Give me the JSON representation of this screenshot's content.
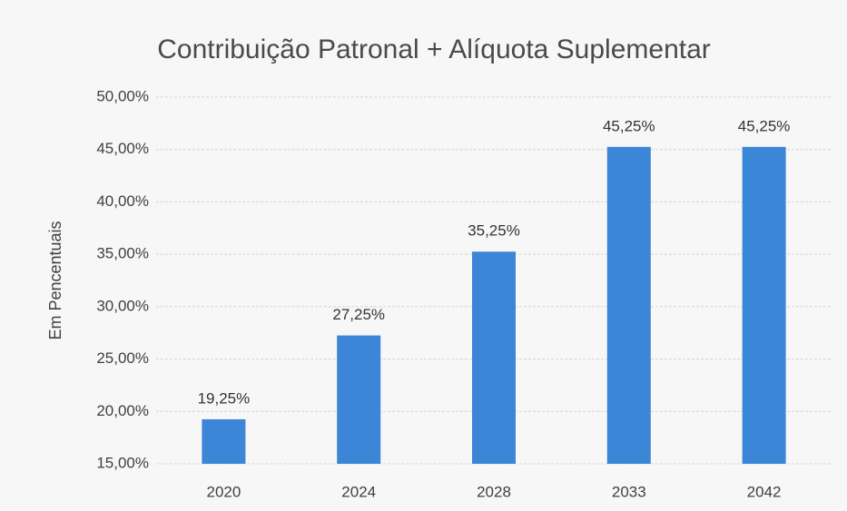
{
  "chart_data": {
    "type": "bar",
    "title": "Contribuição Patronal + Alíquota Suplementar",
    "y_label": "Em Pencentuais",
    "categories": [
      "2020",
      "2024",
      "2028",
      "2033",
      "2042"
    ],
    "values": [
      19.25,
      27.25,
      35.25,
      45.25,
      45.25
    ],
    "value_labels": [
      "19,25%",
      "27,25%",
      "35,25%",
      "45,25%",
      "45,25%"
    ],
    "color": "#3b86d6",
    "ylim": [
      15,
      50
    ],
    "yticks": [
      {
        "value": 15,
        "label": "15,00%"
      },
      {
        "value": 20,
        "label": "20,00%"
      },
      {
        "value": 25,
        "label": "25,00%"
      },
      {
        "value": 30,
        "label": "30,00%"
      },
      {
        "value": 35,
        "label": "35,00%"
      },
      {
        "value": 40,
        "label": "40,00%"
      },
      {
        "value": 45,
        "label": "45,00%"
      },
      {
        "value": 50,
        "label": "50,00%"
      }
    ],
    "grid": true
  }
}
